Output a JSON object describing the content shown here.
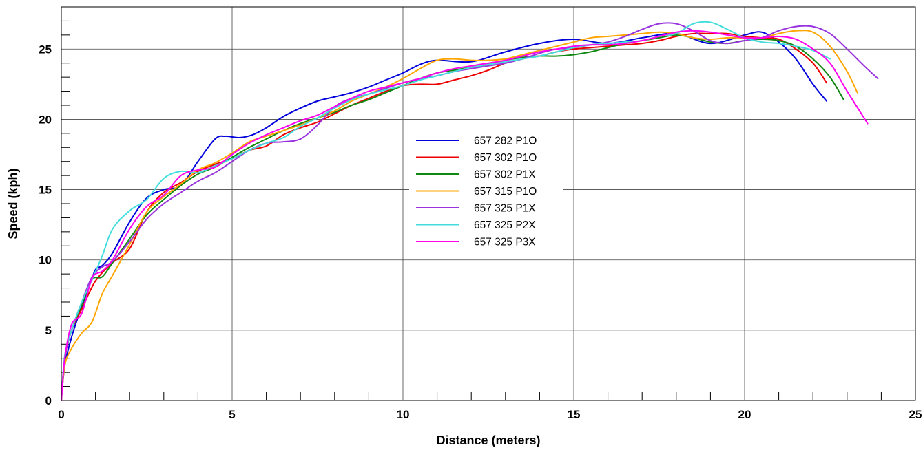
{
  "chart_data": {
    "type": "line",
    "title": "",
    "xlabel": "Distance (meters)",
    "ylabel": "Speed (kph)",
    "xlim": [
      0,
      25
    ],
    "ylim": [
      0,
      28
    ],
    "xticks": [
      0,
      5,
      10,
      15,
      20,
      25
    ],
    "yticks": [
      0,
      5,
      10,
      15,
      20,
      25
    ],
    "grid": true,
    "legend_position": "center",
    "series": [
      {
        "name": "657 282 P1O",
        "color": "#0000dd",
        "x": [
          0,
          0.1,
          0.3,
          0.5,
          0.8,
          1,
          1.2,
          1.5,
          2,
          2.5,
          3,
          3.5,
          4,
          4.5,
          4.8,
          5.2,
          5.6,
          6,
          6.5,
          7,
          7.5,
          8,
          8.5,
          9,
          9.5,
          10,
          10.5,
          11,
          12,
          13,
          14,
          15,
          16,
          17,
          18,
          19,
          20,
          20.5,
          21,
          21.5,
          22,
          22.4
        ],
        "y": [
          0,
          2.5,
          4.5,
          6,
          8,
          9.3,
          9.6,
          10.5,
          12.7,
          14.4,
          15,
          15.3,
          17,
          18.6,
          18.8,
          18.7,
          18.9,
          19.4,
          20.2,
          20.8,
          21.3,
          21.6,
          21.9,
          22.3,
          22.8,
          23.3,
          23.9,
          24.2,
          24.1,
          24.8,
          25.4,
          25.7,
          25.4,
          25.8,
          26.1,
          25.4,
          26,
          26.2,
          25.5,
          24.3,
          22.5,
          21.3
        ]
      },
      {
        "name": "657 302 P1O",
        "color": "#ee0000",
        "x": [
          0,
          0.1,
          0.3,
          0.6,
          1,
          1.5,
          2,
          2.5,
          3,
          3.5,
          4,
          4.5,
          5,
          5.5,
          6,
          6.5,
          7,
          7.5,
          8,
          8.5,
          9,
          9.5,
          10,
          10.5,
          11,
          11.5,
          12,
          12.5,
          13,
          13.5,
          14,
          14.5,
          15,
          15.5,
          16,
          16.5,
          17,
          17.5,
          18,
          18.5,
          19,
          19.5,
          20,
          20.5,
          21,
          21.5,
          22,
          22.4
        ],
        "y": [
          0,
          3,
          5,
          6.5,
          8.5,
          9.8,
          10.8,
          13.4,
          14.8,
          15.5,
          16.3,
          16.8,
          17.2,
          17.8,
          18.1,
          18.9,
          19.4,
          19.8,
          20.4,
          21,
          21.5,
          22,
          22.4,
          22.5,
          22.5,
          22.8,
          23.1,
          23.5,
          24,
          24.3,
          24.5,
          24.8,
          25,
          25.1,
          25.2,
          25.3,
          25.4,
          25.6,
          25.9,
          26.1,
          26.1,
          26.1,
          25.9,
          25.8,
          25.7,
          25,
          24,
          22.6
        ]
      },
      {
        "name": "657 302 P1X",
        "color": "#118811",
        "x": [
          0,
          0.1,
          0.3,
          0.6,
          0.9,
          1.2,
          1.5,
          2,
          2.5,
          3,
          3.5,
          4,
          4.5,
          5,
          5.5,
          6,
          6.5,
          7,
          7.5,
          8,
          8.5,
          9,
          9.5,
          10,
          10.5,
          11,
          11.5,
          12,
          12.5,
          13,
          13.5,
          14,
          14.5,
          15,
          15.5,
          16,
          16.5,
          17,
          17.5,
          18,
          18.5,
          19,
          19.5,
          20,
          20.5,
          21,
          21.5,
          22,
          22.5,
          22.9
        ],
        "y": [
          0,
          3,
          5,
          6.8,
          8.6,
          8.8,
          9.8,
          11.5,
          13.2,
          14.3,
          15.3,
          16.1,
          16.6,
          17.3,
          18,
          18.6,
          19.2,
          19.7,
          20.1,
          20.5,
          21,
          21.4,
          21.9,
          22.4,
          22.9,
          23.3,
          23.5,
          23.7,
          23.9,
          24.2,
          24.4,
          24.5,
          24.5,
          24.6,
          24.8,
          25.1,
          25.4,
          25.6,
          25.8,
          26,
          25.8,
          25.5,
          25.4,
          25.6,
          25.7,
          25.6,
          25.2,
          24.3,
          23,
          21.4
        ]
      },
      {
        "name": "657 315 P1O",
        "color": "#ffa500",
        "x": [
          0,
          0.1,
          0.3,
          0.6,
          0.9,
          1.2,
          1.5,
          2,
          2.5,
          3,
          3.5,
          4,
          4.5,
          5,
          5.5,
          6,
          6.5,
          7,
          7.5,
          8,
          8.5,
          9,
          9.5,
          10,
          10.5,
          11,
          11.5,
          12,
          12.5,
          13,
          13.5,
          14,
          14.5,
          15,
          15.5,
          16,
          16.5,
          17,
          17.5,
          18,
          18.5,
          19,
          19.5,
          20,
          20.5,
          21,
          21.5,
          22,
          22.5,
          23,
          23.3
        ],
        "y": [
          0,
          2.5,
          3.7,
          4.8,
          5.6,
          7.6,
          8.9,
          11.1,
          13.4,
          14.5,
          15.4,
          16.4,
          16.9,
          17.6,
          18.4,
          18.8,
          19.2,
          19.6,
          20.1,
          20.6,
          21.3,
          21.8,
          22.3,
          22.9,
          23.6,
          24.2,
          24.3,
          24.2,
          24.2,
          24.3,
          24.6,
          24.9,
          25.2,
          25.5,
          25.8,
          25.9,
          26,
          26.1,
          26.2,
          26.1,
          25.8,
          25.7,
          25.8,
          25.8,
          25.8,
          26.1,
          26.3,
          26.2,
          25.2,
          23.4,
          21.9
        ]
      },
      {
        "name": "657 325 P1X",
        "color": "#9933dd",
        "x": [
          0,
          0.1,
          0.3,
          0.6,
          0.9,
          1.2,
          1.5,
          2,
          2.5,
          3,
          3.5,
          4,
          4.5,
          5,
          5.5,
          6,
          6.5,
          7,
          7.5,
          8,
          8.5,
          9,
          9.5,
          10,
          10.5,
          11,
          11.5,
          12,
          12.5,
          13,
          13.5,
          14,
          14.5,
          15,
          15.5,
          16,
          16.5,
          17,
          17.5,
          18,
          18.5,
          19,
          19.5,
          20,
          20.5,
          21,
          21.5,
          22,
          22.5,
          23,
          23.5,
          23.9
        ],
        "y": [
          0,
          3,
          5,
          7,
          8.8,
          9.5,
          9.9,
          11.3,
          12.9,
          14,
          14.8,
          15.6,
          16.2,
          17,
          17.8,
          18.3,
          18.4,
          18.6,
          19.6,
          20.9,
          21.5,
          21.8,
          22.2,
          22.6,
          22.9,
          23.1,
          23.4,
          23.6,
          23.8,
          24,
          24.3,
          24.7,
          25,
          25.1,
          25.3,
          25.5,
          25.9,
          26.4,
          26.8,
          26.8,
          26.3,
          25.6,
          25.4,
          25.6,
          25.8,
          26.3,
          26.6,
          26.6,
          26.1,
          25,
          23.8,
          22.9
        ]
      },
      {
        "name": "657 325 P2X",
        "color": "#44dddd",
        "x": [
          0,
          0.1,
          0.3,
          0.6,
          0.9,
          1.2,
          1.5,
          2,
          2.5,
          3,
          3.5,
          4,
          4.5,
          5,
          5.5,
          6,
          6.5,
          7,
          7.5,
          8,
          8.5,
          9,
          9.5,
          10,
          10.5,
          11,
          11.5,
          12,
          12.5,
          13,
          13.5,
          14,
          14.5,
          15,
          15.5,
          16,
          16.5,
          17,
          17.5,
          18,
          18.5,
          19,
          19.5,
          20,
          20.5,
          21,
          21.5,
          22,
          22.5
        ],
        "y": [
          0,
          3.2,
          5,
          7,
          8.6,
          10.3,
          12.2,
          13.5,
          14.3,
          15.8,
          16.3,
          16.2,
          16.7,
          17.2,
          17.8,
          18.3,
          18.7,
          19.5,
          20.1,
          20.8,
          21.4,
          21.8,
          22.1,
          22.4,
          22.8,
          23.1,
          23.4,
          23.7,
          23.9,
          24.1,
          24.3,
          24.5,
          24.8,
          25.1,
          25.3,
          25.4,
          25.5,
          25.6,
          25.9,
          26.1,
          26.8,
          26.9,
          26.4,
          25.8,
          25.5,
          25.4,
          25.2,
          24.9,
          24.3
        ]
      },
      {
        "name": "657 325 P3X",
        "color": "#ff00ee",
        "x": [
          0,
          0.1,
          0.3,
          0.6,
          0.9,
          1.2,
          1.5,
          2,
          2.5,
          3,
          3.5,
          4,
          4.5,
          5,
          5.5,
          6,
          6.5,
          7,
          7.5,
          8,
          8.5,
          9,
          9.5,
          10,
          10.5,
          11,
          11.5,
          12,
          12.5,
          13,
          13.5,
          14,
          14.5,
          15,
          15.5,
          16,
          16.5,
          17,
          17.5,
          18,
          18.5,
          19,
          19.5,
          20,
          20.5,
          21,
          21.5,
          22,
          22.5,
          23,
          23.6
        ],
        "y": [
          0,
          3,
          5.4,
          6.2,
          8.7,
          9.2,
          10,
          12.2,
          13.8,
          14.6,
          16,
          16.4,
          16.6,
          17.5,
          18.3,
          18.9,
          19.4,
          19.9,
          20.3,
          20.9,
          21.5,
          22,
          22.3,
          22.6,
          22.9,
          23.3,
          23.6,
          23.8,
          24,
          24.2,
          24.5,
          24.8,
          25,
          25.2,
          25.3,
          25.3,
          25.4,
          25.6,
          25.9,
          26.2,
          26.3,
          26.2,
          26,
          25.8,
          25.8,
          25.9,
          25.7,
          25,
          24,
          22,
          19.7
        ]
      }
    ]
  }
}
